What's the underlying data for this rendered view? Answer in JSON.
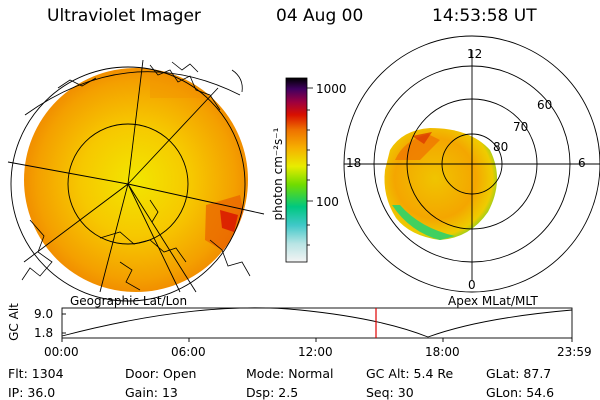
{
  "header": {
    "title": "Ultraviolet Imager",
    "date": "04 Aug 00",
    "time": "14:53:58 UT"
  },
  "colorbar": {
    "unit_label": "photon cm⁻²s⁻¹",
    "ticks": [
      "1000",
      "100"
    ]
  },
  "polar_plot": {
    "mlt_labels": [
      "12",
      "18",
      "6",
      "0"
    ],
    "lat_labels": [
      "60",
      "70",
      "80"
    ]
  },
  "map_labels": {
    "geographic": "Geographic Lat/Lon",
    "apex": "Apex MLat/MLT"
  },
  "altitude_plot": {
    "ylabel": "GC Alt",
    "yticks": [
      "9.0",
      "1.8"
    ],
    "xticks": [
      "00:00",
      "06:00",
      "12:00",
      "18:00",
      "23:59"
    ],
    "marker_color": "#e00000"
  },
  "info": {
    "row1": [
      {
        "label": "Flt:",
        "value": "1304"
      },
      {
        "label": "Door:",
        "value": "Open"
      },
      {
        "label": "Mode:",
        "value": "Normal"
      },
      {
        "label": "GC Alt:",
        "value": "5.4 Re"
      },
      {
        "label": "GLat:",
        "value": "87.7"
      }
    ],
    "row2": [
      {
        "label": "IP:",
        "value": "36.0"
      },
      {
        "label": "Gain:",
        "value": "13"
      },
      {
        "label": "Dsp:",
        "value": "2.5"
      },
      {
        "label": "Seq:",
        "value": "30"
      },
      {
        "label": "GLon:",
        "value": "54.6"
      }
    ]
  }
}
